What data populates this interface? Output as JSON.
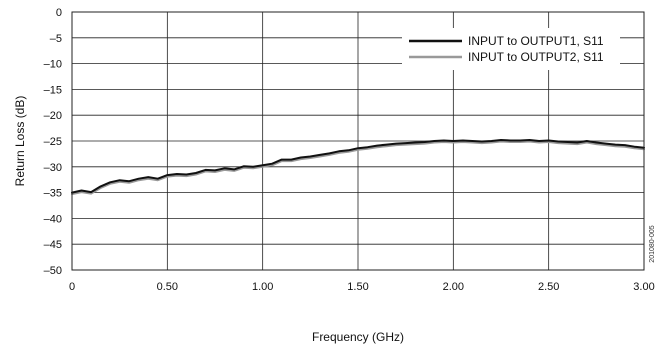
{
  "chart_data": {
    "type": "line",
    "xlabel": "Frequency (GHz)",
    "ylabel": "Return Loss (dB)",
    "xlim": [
      0,
      3
    ],
    "ylim": [
      -50,
      0
    ],
    "xticks": [
      "0",
      "0.50",
      "1.00",
      "1.50",
      "2.00",
      "2.50",
      "3.00"
    ],
    "yticks": [
      "0",
      "–5",
      "–10",
      "–15",
      "–20",
      "–25",
      "–30",
      "–35",
      "–40",
      "–45",
      "–50"
    ],
    "grid": true,
    "legend_position": "top-right",
    "side_label": "201080-005",
    "series": [
      {
        "name": "INPUT to OUTPUT1, S11",
        "color": "#111111",
        "x": [
          0,
          0.05,
          0.1,
          0.15,
          0.2,
          0.25,
          0.3,
          0.35,
          0.4,
          0.45,
          0.5,
          0.55,
          0.6,
          0.65,
          0.7,
          0.75,
          0.8,
          0.85,
          0.9,
          0.95,
          1.0,
          1.05,
          1.1,
          1.15,
          1.2,
          1.25,
          1.3,
          1.35,
          1.4,
          1.45,
          1.5,
          1.55,
          1.6,
          1.65,
          1.7,
          1.75,
          1.8,
          1.85,
          1.9,
          1.95,
          2.0,
          2.05,
          2.1,
          2.15,
          2.2,
          2.25,
          2.3,
          2.35,
          2.4,
          2.45,
          2.5,
          2.55,
          2.6,
          2.65,
          2.7,
          2.75,
          2.8,
          2.85,
          2.9,
          2.95,
          3.0
        ],
        "y": [
          -35.0,
          -34.6,
          -34.9,
          -33.8,
          -33.0,
          -32.6,
          -32.8,
          -32.3,
          -32.0,
          -32.3,
          -31.6,
          -31.4,
          -31.5,
          -31.2,
          -30.6,
          -30.7,
          -30.3,
          -30.5,
          -29.9,
          -30.0,
          -29.7,
          -29.4,
          -28.6,
          -28.6,
          -28.2,
          -28.0,
          -27.7,
          -27.4,
          -27.0,
          -26.8,
          -26.4,
          -26.2,
          -25.9,
          -25.7,
          -25.5,
          -25.4,
          -25.3,
          -25.2,
          -25.0,
          -24.9,
          -25.0,
          -24.9,
          -25.0,
          -25.1,
          -25.0,
          -24.8,
          -24.9,
          -24.9,
          -24.8,
          -25.0,
          -24.9,
          -25.1,
          -25.2,
          -25.3,
          -25.0,
          -25.3,
          -25.5,
          -25.7,
          -25.8,
          -26.1,
          -26.3
        ]
      },
      {
        "name": "INPUT to OUTPUT2, S11",
        "color": "#999999",
        "x": [
          0,
          0.05,
          0.1,
          0.15,
          0.2,
          0.25,
          0.3,
          0.35,
          0.4,
          0.45,
          0.5,
          0.55,
          0.6,
          0.65,
          0.7,
          0.75,
          0.8,
          0.85,
          0.9,
          0.95,
          1.0,
          1.05,
          1.1,
          1.15,
          1.2,
          1.25,
          1.3,
          1.35,
          1.4,
          1.45,
          1.5,
          1.55,
          1.6,
          1.65,
          1.7,
          1.75,
          1.8,
          1.85,
          1.9,
          1.95,
          2.0,
          2.05,
          2.1,
          2.15,
          2.2,
          2.25,
          2.3,
          2.35,
          2.4,
          2.45,
          2.5,
          2.55,
          2.6,
          2.65,
          2.7,
          2.75,
          2.8,
          2.85,
          2.9,
          2.95,
          3.0
        ],
        "y": [
          -35.3,
          -34.9,
          -35.2,
          -34.1,
          -33.3,
          -32.9,
          -33.1,
          -32.6,
          -32.3,
          -32.6,
          -31.9,
          -31.7,
          -31.8,
          -31.5,
          -30.9,
          -31.0,
          -30.6,
          -30.8,
          -30.2,
          -30.3,
          -30.0,
          -29.7,
          -28.9,
          -28.9,
          -28.5,
          -28.3,
          -28.0,
          -27.7,
          -27.3,
          -27.1,
          -26.7,
          -26.5,
          -26.2,
          -26.0,
          -25.8,
          -25.7,
          -25.6,
          -25.5,
          -25.3,
          -25.2,
          -25.3,
          -25.2,
          -25.3,
          -25.4,
          -25.3,
          -25.1,
          -25.2,
          -25.2,
          -25.1,
          -25.3,
          -25.2,
          -25.4,
          -25.5,
          -25.6,
          -25.3,
          -25.6,
          -25.8,
          -26.0,
          -26.1,
          -26.4,
          -26.6
        ]
      }
    ]
  }
}
